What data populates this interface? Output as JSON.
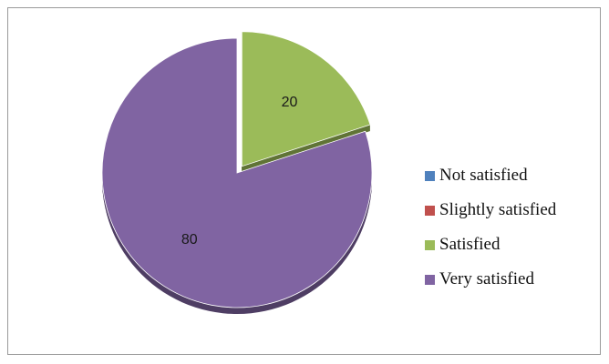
{
  "chart_data": {
    "type": "pie",
    "title": "",
    "categories": [
      "Not satisfied",
      "Slightly satisfied",
      "Satisfied",
      "Very satisfied"
    ],
    "values": [
      0,
      0,
      20,
      80
    ],
    "data_labels": [
      "",
      "",
      "20",
      "80"
    ],
    "colors": [
      "#4f81bd",
      "#c0504d",
      "#9bbb59",
      "#8064a2"
    ],
    "exploded_category": "Satisfied",
    "style": "3d",
    "legend_position": "right"
  },
  "legend": {
    "items": [
      {
        "label": "Not satisfied",
        "color": "#4f81bd"
      },
      {
        "label": "Slightly satisfied",
        "color": "#c0504d"
      },
      {
        "label": "Satisfied",
        "color": "#9bbb59"
      },
      {
        "label": "Very satisfied",
        "color": "#8064a2"
      }
    ]
  }
}
